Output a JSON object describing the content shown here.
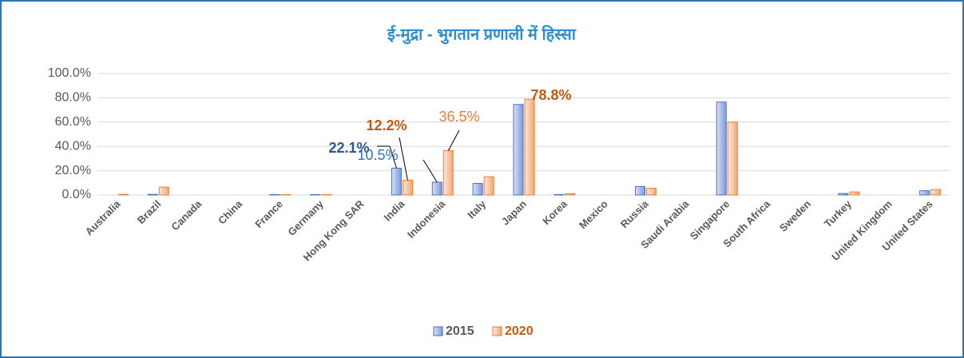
{
  "chart_data": {
    "type": "bar",
    "title": "ई-मुद्रा - भुगतान प्रणाली में हिस्सा",
    "categories": [
      "Australia",
      "Brazil",
      "Canada",
      "China",
      "France",
      "Germany",
      "Hong Kong SAR",
      "India",
      "Indonesia",
      "Italy",
      "Japan",
      "Korea",
      "Mexico",
      "Russia",
      "Saudi Arabia",
      "Singapore",
      "South Africa",
      "Sweden",
      "Turkey",
      "United Kingdom",
      "United States"
    ],
    "series": [
      {
        "name": "2015",
        "color": "#4472c4",
        "values": [
          0,
          0.5,
          0,
          0,
          0.3,
          0.3,
          0,
          22.1,
          10.5,
          9.5,
          74.5,
          0.4,
          0,
          7,
          0,
          76.5,
          0,
          0,
          1.2,
          0,
          3.5
        ],
        "value_labels": [
          null,
          null,
          null,
          null,
          null,
          null,
          null,
          "22.1%",
          "10.5%",
          null,
          null,
          null,
          null,
          null,
          null,
          null,
          null,
          null,
          null,
          null,
          null
        ]
      },
      {
        "name": "2020",
        "color": "#ed7d31",
        "values": [
          0.5,
          6.5,
          0,
          0,
          0.3,
          0.3,
          0,
          12.2,
          36.5,
          15,
          78.8,
          1,
          0,
          5.5,
          0,
          60,
          0,
          0,
          2.5,
          0,
          4.5
        ],
        "value_labels": [
          null,
          null,
          null,
          null,
          null,
          null,
          null,
          "12.2%",
          "36.5%",
          null,
          "78.8%",
          null,
          null,
          null,
          null,
          null,
          null,
          null,
          null,
          null,
          null
        ]
      }
    ],
    "ylim": [
      0,
      100
    ],
    "yticks": [
      {
        "value": 0,
        "label": "0.0%"
      },
      {
        "value": 20,
        "label": "20.0%"
      },
      {
        "value": 40,
        "label": "40.0%"
      },
      {
        "value": 60,
        "label": "60.0%"
      },
      {
        "value": 80,
        "label": "80.0%"
      },
      {
        "value": 100,
        "label": "100.0%"
      }
    ],
    "grid": true,
    "legend": "bottom"
  }
}
